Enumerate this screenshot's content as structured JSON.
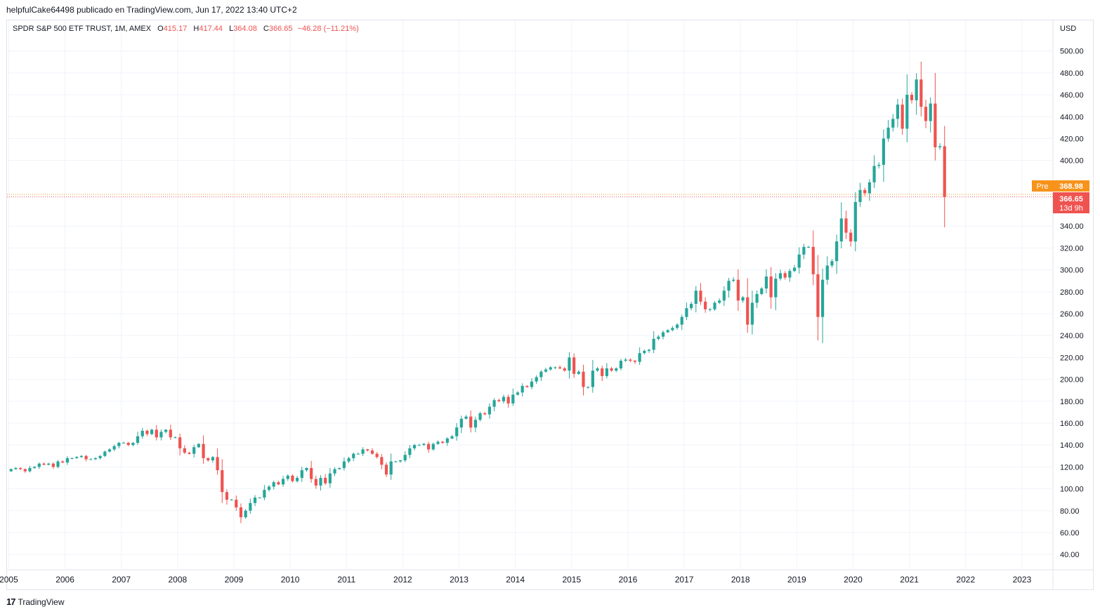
{
  "header": {
    "published_line": "helpfulCake64498 publicado en TradingView.com, Jun 17, 2022 13:40 UTC+2"
  },
  "legend": {
    "symbol": "SPDR S&P 500 ETF TRUST, 1M, AMEX",
    "o_label": "O",
    "o_value": "415.17",
    "h_label": "H",
    "h_value": "417.44",
    "l_label": "L",
    "l_value": "364.08",
    "c_label": "C",
    "c_value": "366.65",
    "change": "−46.28 (−11.21%)"
  },
  "colors": {
    "up": "#26a69a",
    "down": "#ef5350",
    "pre": "#f7931a",
    "grid": "#f0f3fa",
    "axis": "#e0e3eb"
  },
  "price_labels": {
    "currency": "USD",
    "pre_tag": "Pre",
    "pre_price": "368.98",
    "last_price": "366.65",
    "countdown": "13d 9h"
  },
  "footer": {
    "brand": "TradingView",
    "logo": "17"
  },
  "chart_data": {
    "type": "candlestick",
    "title": "SPDR S&P 500 ETF TRUST, 1M, AMEX",
    "ylabel": "USD",
    "ylim": [
      26,
      528
    ],
    "xlim": [
      2004.97,
      2023.55
    ],
    "y_ticks": [
      40,
      60,
      80,
      100,
      120,
      140,
      160,
      180,
      200,
      220,
      240,
      260,
      280,
      300,
      320,
      340,
      400,
      420,
      440,
      460,
      480,
      500
    ],
    "y_tick_labels": [
      "40.00",
      "60.00",
      "80.00",
      "100.00",
      "120.00",
      "140.00",
      "160.00",
      "180.00",
      "200.00",
      "220.00",
      "240.00",
      "260.00",
      "280.00",
      "300.00",
      "320.00",
      "340.00",
      "400.00",
      "420.00",
      "440.00",
      "460.00",
      "480.00",
      "500.00"
    ],
    "x_ticks": [
      "2005",
      "2006",
      "2007",
      "2008",
      "2009",
      "2010",
      "2011",
      "2012",
      "2013",
      "2014",
      "2015",
      "2016",
      "2017",
      "2018",
      "2019",
      "2020",
      "2021",
      "2022",
      "2023"
    ],
    "pre_market_price": 368.98,
    "last_close": 366.65,
    "start": "2005-01",
    "closes": [
      118,
      119,
      118,
      116,
      119,
      120,
      123,
      122,
      123,
      120,
      125,
      124,
      128,
      128,
      129,
      130,
      127,
      127,
      128,
      130,
      134,
      136,
      139,
      142,
      142,
      140,
      142,
      148,
      153,
      150,
      154,
      147,
      152,
      154,
      147,
      147,
      137,
      133,
      132,
      138,
      141,
      128,
      126,
      129,
      117,
      97,
      90,
      90,
      83,
      74,
      80,
      87,
      92,
      92,
      99,
      102,
      106,
      104,
      109,
      112,
      107,
      110,
      117,
      119,
      109,
      103,
      110,
      105,
      114,
      118,
      119,
      125,
      128,
      132,
      132,
      136,
      135,
      132,
      129,
      122,
      113,
      125,
      125,
      126,
      131,
      137,
      140,
      140,
      141,
      136,
      141,
      143,
      142,
      146,
      148,
      156,
      164,
      166,
      156,
      163,
      169,
      168,
      175,
      181,
      180,
      184,
      178,
      186,
      188,
      194,
      193,
      198,
      202,
      207,
      209,
      211,
      211,
      210,
      208,
      220,
      205,
      207,
      193,
      193,
      208,
      210,
      203,
      210,
      208,
      210,
      217,
      218,
      217,
      216,
      224,
      226,
      227,
      237,
      239,
      243,
      245,
      247,
      250,
      257,
      265,
      269,
      281,
      271,
      264,
      264,
      270,
      272,
      281,
      290,
      291,
      272,
      275,
      250,
      270,
      278,
      283,
      294,
      275,
      292,
      297,
      293,
      299,
      302,
      314,
      321,
      321,
      296,
      257,
      291,
      304,
      308,
      326,
      347,
      334,
      326,
      362,
      373,
      370,
      380,
      395,
      396,
      420,
      430,
      438,
      451,
      429,
      460,
      455,
      474,
      449,
      436,
      452,
      412,
      413,
      366.65
    ]
  }
}
